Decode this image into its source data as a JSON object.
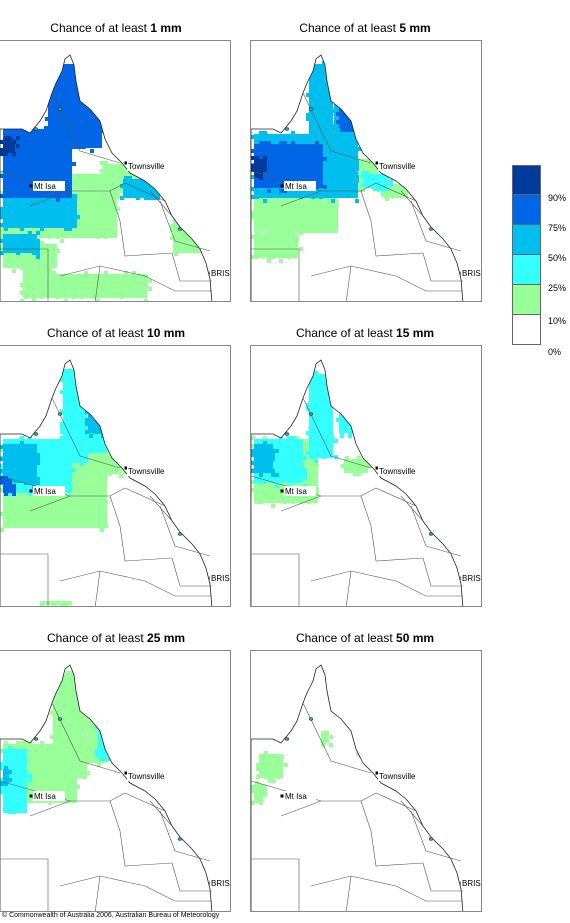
{
  "panels": [
    {
      "title_prefix": "Chance of at least ",
      "amount": "1 mm",
      "level": 0
    },
    {
      "title_prefix": "Chance of at least ",
      "amount": "5 mm",
      "level": 1
    },
    {
      "title_prefix": "Chance of at least ",
      "amount": "10 mm",
      "level": 2
    },
    {
      "title_prefix": "Chance of at least ",
      "amount": "15 mm",
      "level": 3
    },
    {
      "title_prefix": "Chance of at least ",
      "amount": "25 mm",
      "level": 4
    },
    {
      "title_prefix": "Chance of at least ",
      "amount": "50 mm",
      "level": 5
    }
  ],
  "places": {
    "townsville": "Townsville",
    "mtisa": "Mt Isa",
    "bris": "BRIS"
  },
  "legend": {
    "colors": [
      "#003a9a",
      "#0066e6",
      "#00bfee",
      "#33ffff",
      "#99ff99",
      "#ffffff"
    ],
    "labels": [
      "90%",
      "75%",
      "50%",
      "25%",
      "10%",
      "0%"
    ]
  },
  "copyright": "© Commonwealth of Australia 2006, Australian Bureau of Meteorology"
}
